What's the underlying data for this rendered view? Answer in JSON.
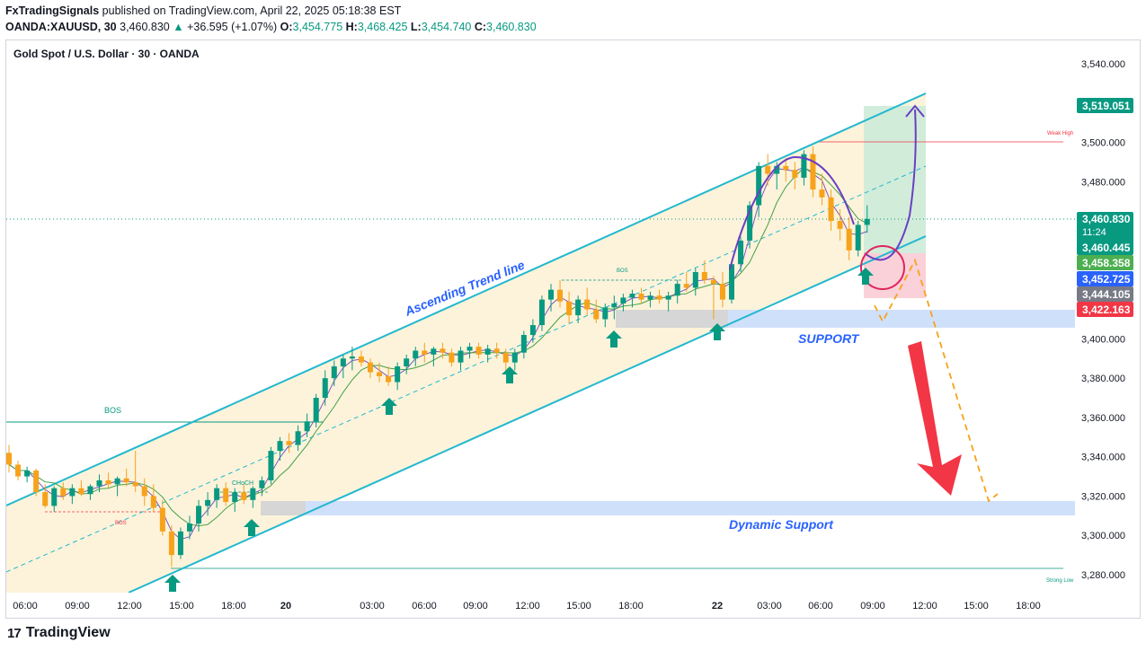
{
  "header": {
    "publisher": "FxTradingSignals",
    "published_text": " published on TradingView.com, April 22, 2025 05:18:38 EST",
    "symbol": "OANDA:XAUUSD, 30",
    "last": "3,460.830",
    "change": "+36.595 (+1.07%)",
    "o_label": "O:",
    "o_value": "3,454.775",
    "h_label": "H:",
    "h_value": "3,468.425",
    "l_label": "L:",
    "l_value": "3,454.740",
    "c_label": "C:",
    "c_value": "3,460.830"
  },
  "chart_title": "Gold Spot / U.S. Dollar · 30 · OANDA",
  "footer": {
    "brand": "TradingView",
    "mark": "17"
  },
  "colors": {
    "up": "#089981",
    "down": "#f7a21b",
    "channel": "#22b8cf",
    "support_zone": "#cfe0fb",
    "support_text": "#2962ff",
    "arrow_red": "#f23645",
    "target": "#d7f0e4",
    "stop": "#fbd6dc",
    "purple": "#6a3fc1"
  },
  "chart_data": {
    "type": "candlestick",
    "title": "Gold Spot / U.S. Dollar · 30 · OANDA",
    "ylim": [
      3272,
      3548
    ],
    "y_ticks": [
      "3,540.000",
      "3,520.000",
      "3,500.000",
      "3,480.000",
      "3,460.000",
      "3,440.000",
      "3,420.000",
      "3,400.000",
      "3,380.000",
      "3,360.000",
      "3,340.000",
      "3,320.000",
      "3,300.000",
      "3,280.000"
    ],
    "x_ticks": [
      "06:00",
      "09:00",
      "12:00",
      "15:00",
      "18:00",
      "20",
      "03:00",
      "06:00",
      "09:00",
      "12:00",
      "15:00",
      "18:00",
      "22",
      "03:00",
      "06:00",
      "09:00",
      "12:00",
      "15:00",
      "18:00"
    ],
    "candles": [
      [
        3342,
        3346,
        3332,
        3336
      ],
      [
        3336,
        3338,
        3328,
        3330
      ],
      [
        3330,
        3335,
        3327,
        3333
      ],
      [
        3333,
        3334,
        3320,
        3322
      ],
      [
        3322,
        3326,
        3314,
        3315
      ],
      [
        3315,
        3325,
        3312,
        3324
      ],
      [
        3324,
        3327,
        3318,
        3320
      ],
      [
        3320,
        3326,
        3316,
        3324
      ],
      [
        3324,
        3328,
        3320,
        3321
      ],
      [
        3321,
        3326,
        3318,
        3325
      ],
      [
        3325,
        3331,
        3322,
        3328
      ],
      [
        3328,
        3332,
        3324,
        3326
      ],
      [
        3326,
        3330,
        3320,
        3329
      ],
      [
        3329,
        3334,
        3325,
        3327
      ],
      [
        3327,
        3343,
        3322,
        3325
      ],
      [
        3325,
        3329,
        3315,
        3320
      ],
      [
        3320,
        3326,
        3312,
        3314
      ],
      [
        3314,
        3318,
        3300,
        3302
      ],
      [
        3302,
        3305,
        3284,
        3290
      ],
      [
        3290,
        3304,
        3288,
        3302
      ],
      [
        3302,
        3310,
        3298,
        3306
      ],
      [
        3306,
        3318,
        3302,
        3315
      ],
      [
        3315,
        3322,
        3310,
        3318
      ],
      [
        3318,
        3326,
        3314,
        3324
      ],
      [
        3324,
        3327,
        3315,
        3317
      ],
      [
        3317,
        3324,
        3312,
        3322
      ],
      [
        3322,
        3326,
        3316,
        3318
      ],
      [
        3318,
        3325,
        3314,
        3324
      ],
      [
        3324,
        3330,
        3320,
        3328
      ],
      [
        3328,
        3345,
        3326,
        3343
      ],
      [
        3343,
        3350,
        3338,
        3348
      ],
      [
        3348,
        3352,
        3342,
        3346
      ],
      [
        3346,
        3356,
        3343,
        3353
      ],
      [
        3353,
        3362,
        3350,
        3358
      ],
      [
        3358,
        3372,
        3355,
        3370
      ],
      [
        3370,
        3384,
        3366,
        3380
      ],
      [
        3380,
        3389,
        3376,
        3386
      ],
      [
        3386,
        3392,
        3380,
        3390
      ],
      [
        3390,
        3396,
        3384,
        3391
      ],
      [
        3391,
        3394,
        3386,
        3388
      ],
      [
        3388,
        3390,
        3380,
        3383
      ],
      [
        3383,
        3388,
        3378,
        3381
      ],
      [
        3381,
        3386,
        3376,
        3378
      ],
      [
        3378,
        3388,
        3374,
        3386
      ],
      [
        3386,
        3392,
        3382,
        3390
      ],
      [
        3390,
        3396,
        3386,
        3394
      ],
      [
        3394,
        3398,
        3388,
        3392
      ],
      [
        3392,
        3396,
        3386,
        3395
      ],
      [
        3395,
        3398,
        3390,
        3393
      ],
      [
        3393,
        3395,
        3386,
        3388
      ],
      [
        3388,
        3396,
        3384,
        3394
      ],
      [
        3394,
        3398,
        3390,
        3396
      ],
      [
        3396,
        3398,
        3390,
        3392
      ],
      [
        3392,
        3397,
        3388,
        3395
      ],
      [
        3395,
        3398,
        3390,
        3393
      ],
      [
        3393,
        3395,
        3384,
        3388
      ],
      [
        3388,
        3395,
        3384,
        3393
      ],
      [
        3393,
        3404,
        3390,
        3402
      ],
      [
        3402,
        3410,
        3398,
        3407
      ],
      [
        3407,
        3422,
        3404,
        3420
      ],
      [
        3420,
        3428,
        3414,
        3425
      ],
      [
        3425,
        3430,
        3416,
        3419
      ],
      [
        3419,
        3424,
        3408,
        3412
      ],
      [
        3412,
        3422,
        3408,
        3420
      ],
      [
        3420,
        3426,
        3412,
        3415
      ],
      [
        3415,
        3420,
        3408,
        3410
      ],
      [
        3410,
        3418,
        3406,
        3416
      ],
      [
        3416,
        3422,
        3410,
        3418
      ],
      [
        3418,
        3423,
        3414,
        3421
      ],
      [
        3421,
        3425,
        3416,
        3423
      ],
      [
        3423,
        3426,
        3418,
        3420
      ],
      [
        3420,
        3424,
        3416,
        3422
      ],
      [
        3422,
        3425,
        3418,
        3420
      ],
      [
        3420,
        3424,
        3414,
        3422
      ],
      [
        3422,
        3430,
        3418,
        3428
      ],
      [
        3428,
        3434,
        3424,
        3426
      ],
      [
        3426,
        3436,
        3422,
        3434
      ],
      [
        3434,
        3440,
        3428,
        3430
      ],
      [
        3430,
        3432,
        3410,
        3428
      ],
      [
        3428,
        3434,
        3416,
        3420
      ],
      [
        3420,
        3440,
        3418,
        3438
      ],
      [
        3438,
        3452,
        3434,
        3450
      ],
      [
        3450,
        3470,
        3446,
        3468
      ],
      [
        3468,
        3490,
        3462,
        3488
      ],
      [
        3488,
        3494,
        3478,
        3484
      ],
      [
        3484,
        3490,
        3476,
        3488
      ],
      [
        3488,
        3492,
        3480,
        3486
      ],
      [
        3486,
        3490,
        3476,
        3482
      ],
      [
        3482,
        3496,
        3478,
        3494
      ],
      [
        3494,
        3498,
        3472,
        3476
      ],
      [
        3476,
        3484,
        3468,
        3472
      ],
      [
        3472,
        3476,
        3455,
        3460
      ],
      [
        3460,
        3466,
        3450,
        3456
      ],
      [
        3456,
        3462,
        3440,
        3445
      ],
      [
        3445,
        3460,
        3442,
        3458
      ],
      [
        3458,
        3468,
        3454,
        3461
      ]
    ]
  },
  "annotations": {
    "ascending_trend": "Ascending Trend line",
    "support": "SUPPORT",
    "dynamic_support": "Dynamic Support",
    "bos_left": "BOS",
    "bos_mid": "BOS",
    "bos_small": "BOS",
    "choch": "CHoCH",
    "weak_high": "Weak High",
    "strong_low": "Strong Low"
  },
  "price_labels": {
    "target": "3,519.051",
    "current": "3,460.830",
    "countdown": "11:24",
    "l1": "3,460.445",
    "l2": "3,458.358",
    "l3": "3,452.725",
    "l4": "3,444.105",
    "stop": "3,422.163"
  }
}
